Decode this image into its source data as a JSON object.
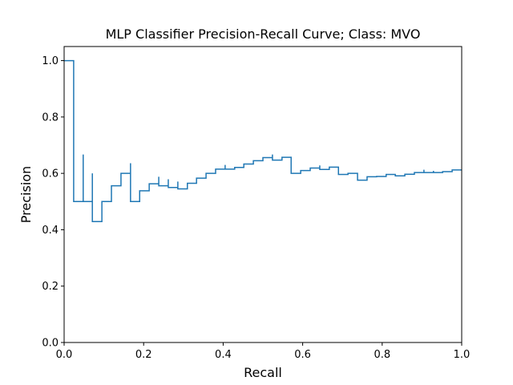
{
  "chart_data": {
    "type": "line",
    "title": "MLP Classifier Precision-Recall Curve; Class: MVO",
    "xlabel": "Recall",
    "ylabel": "Precision",
    "xlim": [
      0.0,
      1.0
    ],
    "ylim": [
      0.0,
      1.05
    ],
    "xticks": [
      "0.0",
      "0.2",
      "0.4",
      "0.6",
      "0.8",
      "1.0"
    ],
    "yticks": [
      "0.0",
      "0.2",
      "0.4",
      "0.6",
      "0.8",
      "1.0"
    ],
    "grid": false,
    "series": [
      {
        "color": "#1f77b4",
        "drawstyle": "steps-post",
        "recall": [
          0.0,
          0.024,
          0.024,
          0.048,
          0.048,
          0.071,
          0.071,
          0.095,
          0.119,
          0.143,
          0.167,
          0.167,
          0.19,
          0.214,
          0.238,
          0.238,
          0.262,
          0.262,
          0.286,
          0.286,
          0.31,
          0.333,
          0.357,
          0.381,
          0.405,
          0.405,
          0.429,
          0.452,
          0.476,
          0.5,
          0.524,
          0.524,
          0.548,
          0.571,
          0.571,
          0.595,
          0.619,
          0.643,
          0.643,
          0.667,
          0.69,
          0.69,
          0.714,
          0.738,
          0.738,
          0.762,
          0.786,
          0.786,
          0.81,
          0.833,
          0.857,
          0.881,
          0.905,
          0.905,
          0.929,
          0.929,
          0.952,
          0.976,
          1.0
        ],
        "precision": [
          1.0,
          1.0,
          0.5,
          0.667,
          0.5,
          0.6,
          0.429,
          0.5,
          0.556,
          0.6,
          0.636,
          0.5,
          0.538,
          0.563,
          0.588,
          0.556,
          0.579,
          0.55,
          0.571,
          0.545,
          0.565,
          0.583,
          0.6,
          0.615,
          0.63,
          0.615,
          0.621,
          0.633,
          0.645,
          0.656,
          0.667,
          0.647,
          0.657,
          0.649,
          0.6,
          0.61,
          0.619,
          0.628,
          0.614,
          0.622,
          0.617,
          0.596,
          0.6,
          0.587,
          0.576,
          0.588,
          0.589,
          0.589,
          0.596,
          0.591,
          0.597,
          0.603,
          0.613,
          0.603,
          0.609,
          0.603,
          0.606,
          0.612,
          0.612
        ]
      }
    ]
  }
}
